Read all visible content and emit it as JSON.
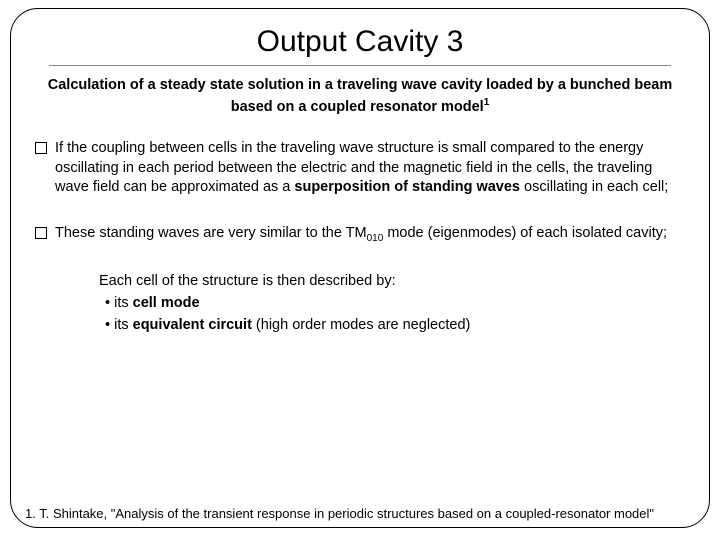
{
  "slide": {
    "title": "Output Cavity 3",
    "subtitle_html": "Calculation of a steady state solution in a traveling wave cavity loaded by a bunched beam based on a coupled resonator model<sup>1</sup>",
    "bullet1_html": "If the coupling between cells in the traveling wave structure is small compared to the energy oscillating in each period between the electric and the magnetic field in the cells, the traveling wave field can be approximated as a <span class=\"b\">superposition of standing waves</span> oscillating in each cell;",
    "bullet2_html": "These standing waves are very similar to the TM<sub>010</sub> mode (eigenmodes) of each isolated cavity;",
    "indent_intro": "Each cell of the structure is then described by:",
    "indent_item1_html": "• its <span class=\"b\">cell mode</span>",
    "indent_item2_html": "• its <span class=\"b\">equivalent circuit</span> (high order modes are neglected)",
    "footnote": "1. T. Shintake, \"Analysis of the transient response in periodic structures based on a coupled-resonator model\""
  },
  "colors": {
    "text": "#000000",
    "border": "#000000",
    "underline": "#888888",
    "background": "#ffffff"
  },
  "typography": {
    "title_fontsize": 30,
    "subtitle_fontsize": 14.5,
    "body_fontsize": 14.5,
    "footnote_fontsize": 13,
    "font_family": "Arial"
  },
  "layout": {
    "slide_width": 700,
    "slide_height": 520,
    "border_radius": 28
  }
}
